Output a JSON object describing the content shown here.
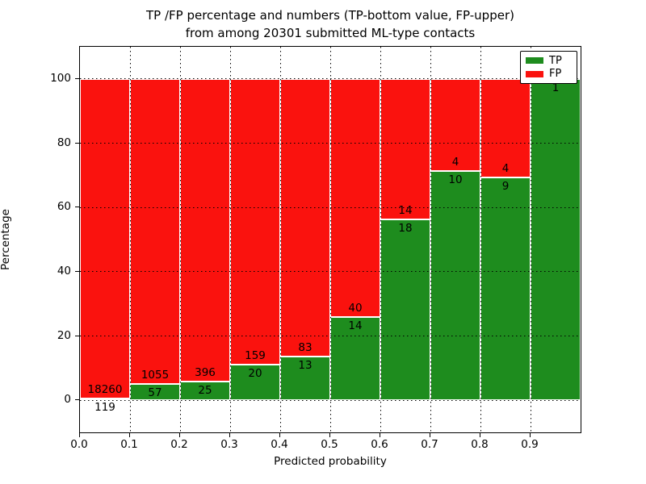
{
  "title": {
    "line1": "TP /FP percentage and numbers (TP-bottom value, FP-upper)",
    "line2": "from among 20301 submitted ML-type contacts"
  },
  "axes": {
    "xlabel": "Predicted probability",
    "ylabel": "Percentage",
    "xtick_labels": [
      "0.0",
      "0.1",
      "0.2",
      "0.3",
      "0.4",
      "0.5",
      "0.6",
      "0.7",
      "0.8",
      "0.9"
    ],
    "xtick_values": [
      0.0,
      0.1,
      0.2,
      0.3,
      0.4,
      0.5,
      0.6,
      0.7,
      0.8,
      0.9
    ],
    "ytick_labels": [
      "0",
      "20",
      "40",
      "60",
      "80",
      "100"
    ],
    "ytick_values": [
      0,
      20,
      40,
      60,
      80,
      100
    ],
    "xlim": [
      0.0,
      1.0
    ],
    "ylim": [
      -10,
      110
    ],
    "grid_style": "dotted"
  },
  "legend": {
    "position": "upper right",
    "entries": [
      {
        "label": "TP",
        "color": "#1e8c1e"
      },
      {
        "label": "FP",
        "color": "#fa120e"
      }
    ]
  },
  "colors": {
    "tp_green": "#1e8c1e",
    "fp_red": "#fa120e",
    "bar_edge": "#ffffff",
    "grid": "#000000"
  },
  "chart_data": {
    "type": "bar",
    "stacked": true,
    "normalization": "each bin scaled to 100 percent",
    "title": "TP /FP percentage and numbers (TP-bottom value, FP-upper) from among 20301 submitted ML-type contacts",
    "xlabel": "Predicted probability",
    "ylabel": "Percentage",
    "total_contacts": 20301,
    "bin_edges": [
      0.0,
      0.1,
      0.2,
      0.3,
      0.4,
      0.5,
      0.6,
      0.7,
      0.8,
      0.9,
      1.0
    ],
    "categories": [
      "0.0-0.1",
      "0.1-0.2",
      "0.2-0.3",
      "0.3-0.4",
      "0.4-0.5",
      "0.5-0.6",
      "0.6-0.7",
      "0.7-0.8",
      "0.8-0.9",
      "0.9-1.0"
    ],
    "series": [
      {
        "name": "TP",
        "color": "#1e8c1e",
        "counts": [
          119,
          57,
          25,
          20,
          13,
          14,
          18,
          10,
          9,
          1
        ]
      },
      {
        "name": "FP",
        "color": "#fa120e",
        "counts": [
          18260,
          1055,
          396,
          159,
          83,
          40,
          14,
          4,
          4,
          0
        ]
      }
    ],
    "tp_percent_of_bin": [
      0.65,
      5.13,
      5.94,
      11.17,
      13.54,
      25.93,
      56.25,
      71.43,
      69.23,
      100.0
    ]
  }
}
